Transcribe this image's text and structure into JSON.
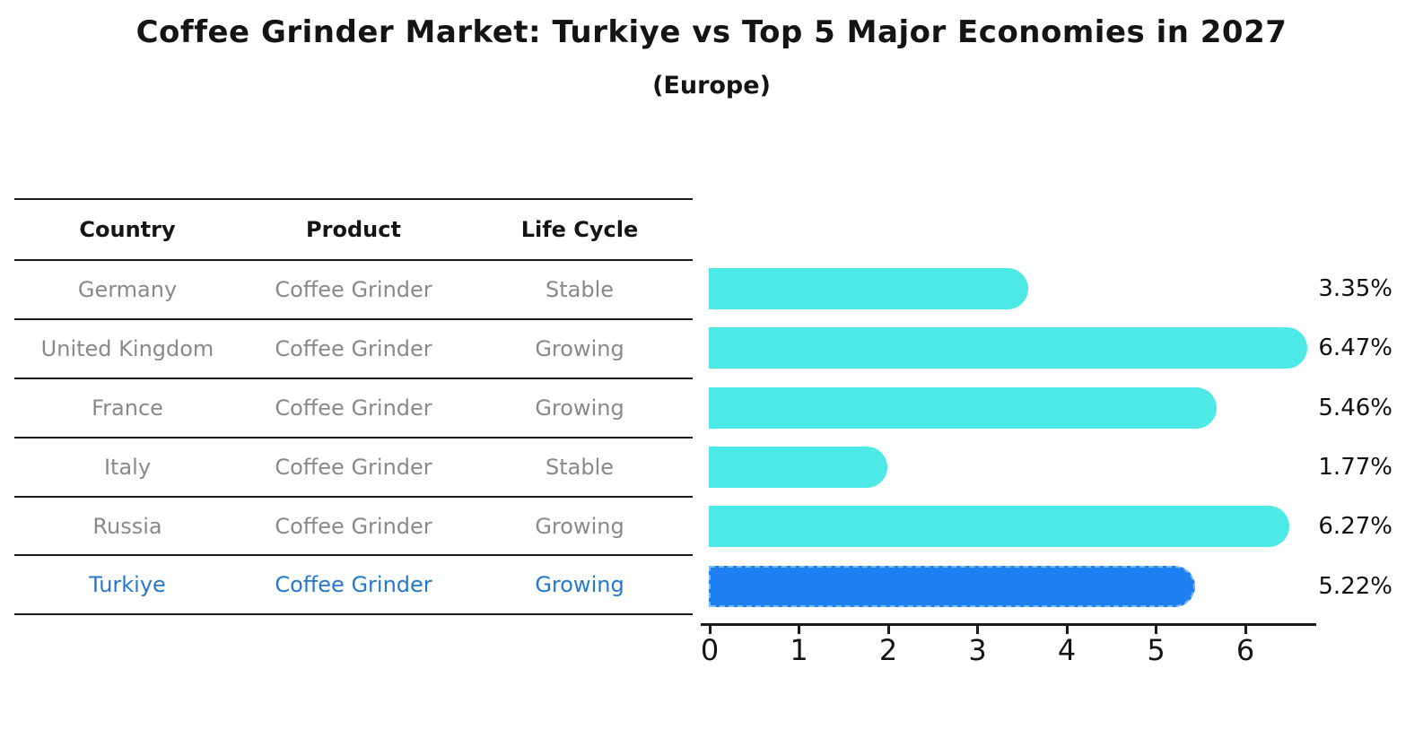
{
  "title": "Coffee Grinder Market: Turkiye vs Top 5 Major Economies in 2027",
  "subtitle": "(Europe)",
  "table": {
    "headers": [
      "Country",
      "Product",
      "Life Cycle"
    ],
    "rows": [
      {
        "country": "Germany",
        "product": "Coffee Grinder",
        "life_cycle": "Stable",
        "highlighted": false
      },
      {
        "country": "United Kingdom",
        "product": "Coffee Grinder",
        "life_cycle": "Growing",
        "highlighted": false
      },
      {
        "country": "France",
        "product": "Coffee Grinder",
        "life_cycle": "Growing",
        "highlighted": false
      },
      {
        "country": "Italy",
        "product": "Coffee Grinder",
        "life_cycle": "Stable",
        "highlighted": false
      },
      {
        "country": "Russia",
        "product": "Coffee Grinder",
        "life_cycle": "Growing",
        "highlighted": false
      },
      {
        "country": "Turkiye",
        "product": "Coffee Grinder",
        "life_cycle": "Growing",
        "highlighted": true
      }
    ]
  },
  "chart_data": {
    "type": "bar",
    "orientation": "horizontal",
    "title": "Coffee Grinder Market: Turkiye vs Top 5 Major Economies in 2027",
    "subtitle": "(Europe)",
    "categories": [
      "Germany",
      "United Kingdom",
      "France",
      "Italy",
      "Russia",
      "Turkiye"
    ],
    "values": [
      3.35,
      6.47,
      5.46,
      1.77,
      6.27,
      5.22
    ],
    "value_labels": [
      "3.35%",
      "6.47%",
      "5.46%",
      "1.77%",
      "6.27%",
      "5.22%"
    ],
    "x_tick_labels": [
      "0",
      "1",
      "2",
      "3",
      "4",
      "5",
      "6"
    ],
    "xlim": [
      0,
      6.8
    ],
    "xlabel": "",
    "ylabel": "",
    "grid": false,
    "legend": false,
    "highlight_index": 5,
    "bar_color": "#4DE9E6",
    "highlight_bar_color": "#1E80F0",
    "highlight_text_color": "#2478CF"
  },
  "colors": {
    "background": "#FFFFFF",
    "text": "#141414",
    "muted_text": "#898989",
    "line": "#1A1A1A"
  }
}
